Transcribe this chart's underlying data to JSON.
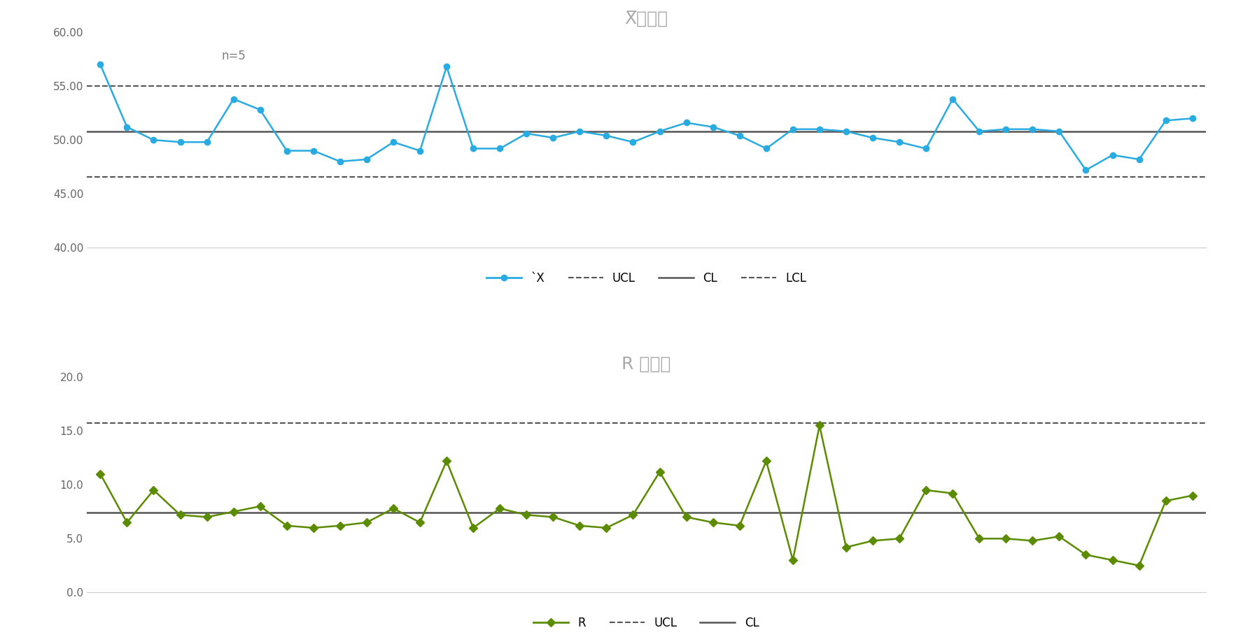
{
  "xbar_data": [
    57.0,
    51.2,
    50.0,
    49.8,
    49.8,
    53.8,
    52.8,
    49.0,
    49.0,
    48.0,
    48.2,
    49.8,
    49.0,
    56.8,
    49.2,
    49.2,
    50.6,
    50.2,
    50.8,
    50.4,
    49.8,
    50.8,
    51.6,
    51.2,
    50.4,
    49.2,
    51.0,
    51.0,
    50.8,
    50.2,
    49.8,
    49.2,
    53.8,
    50.8,
    51.0,
    51.0,
    50.8,
    47.2,
    48.6,
    48.2,
    51.8,
    52.0
  ],
  "r_data": [
    11.0,
    6.5,
    9.5,
    7.2,
    7.0,
    7.5,
    8.0,
    6.2,
    6.0,
    6.2,
    6.5,
    7.8,
    6.5,
    12.2,
    6.0,
    7.8,
    7.2,
    7.0,
    6.2,
    6.0,
    7.2,
    11.2,
    7.0,
    6.5,
    6.2,
    12.2,
    3.0,
    15.5,
    4.2,
    4.8,
    5.0,
    9.5,
    9.2,
    5.0,
    5.0,
    4.8,
    5.2,
    3.5,
    3.0,
    2.5,
    8.5,
    9.0
  ],
  "xbar_ucl": 55.0,
  "xbar_cl": 50.8,
  "xbar_lcl": 46.6,
  "r_ucl": 15.7,
  "r_cl": 7.4,
  "xbar_ylim": [
    40.0,
    60.0
  ],
  "xbar_yticks": [
    40.0,
    45.0,
    50.0,
    55.0,
    60.0
  ],
  "r_ylim": [
    0.0,
    20.0
  ],
  "r_yticks": [
    0.0,
    5.0,
    10.0,
    15.0,
    20.0
  ],
  "xbar_title": "X̅管理図",
  "r_title": "R 管理図",
  "n_label": "n=5",
  "xbar_line_color": "#29ABE2",
  "r_line_color": "#5B8C00",
  "ucl_color": "#555555",
  "cl_color": "#555555",
  "lcl_color": "#555555",
  "background_color": "#FFFFFF",
  "title_color": "#AAAAAA",
  "n_label_color": "#808080",
  "spine_color": "#CCCCCC",
  "tick_color": "#666666"
}
